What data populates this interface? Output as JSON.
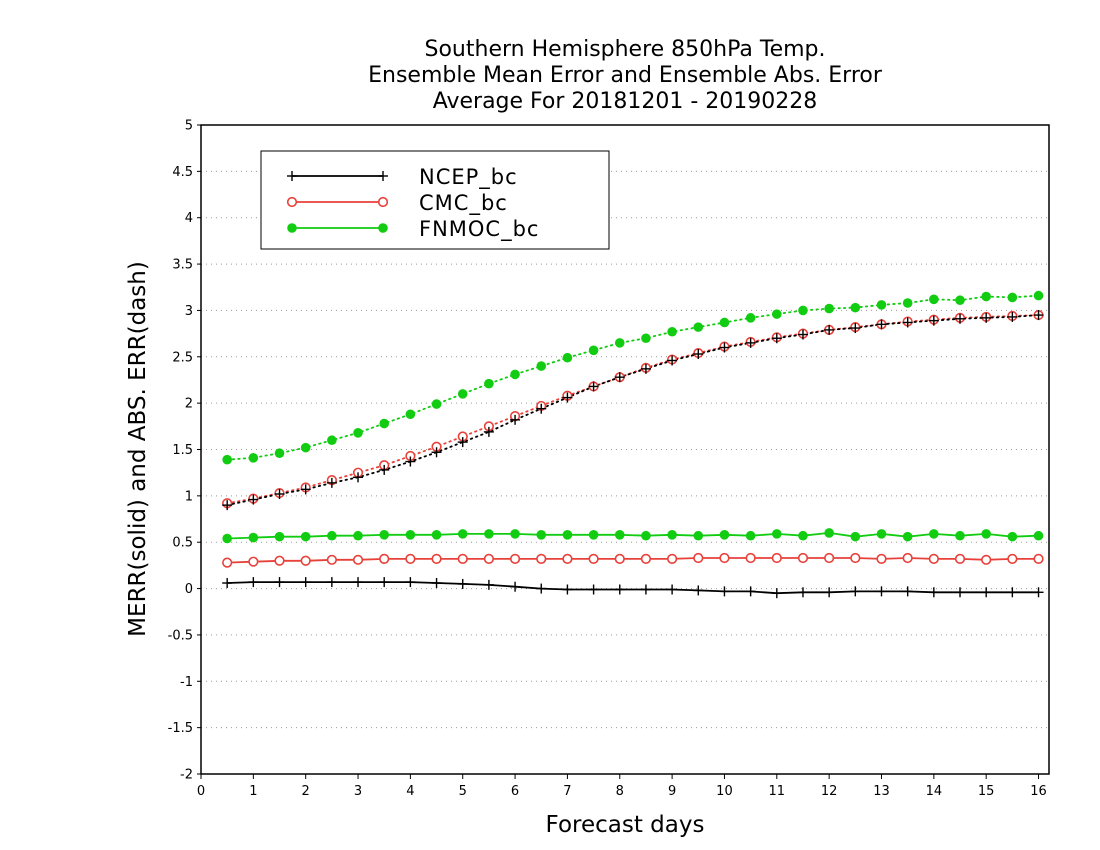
{
  "chart_data": {
    "type": "line",
    "title": [
      "Southern Hemisphere 850hPa Temp.",
      "Ensemble Mean Error and Ensemble Abs. Error",
      "Average For 20181201 - 20190228"
    ],
    "xlabel": "Forecast days",
    "ylabel": "MERR(solid) and ABS. ERR(dash)",
    "xlim": [
      0,
      16.2
    ],
    "ylim": [
      -2,
      5
    ],
    "x_ticks": [
      "0",
      "1",
      "2",
      "3",
      "4",
      "5",
      "6",
      "7",
      "8",
      "9",
      "10",
      "11",
      "12",
      "13",
      "14",
      "15",
      "16"
    ],
    "y_ticks": [
      "-2",
      "-1.5",
      "-1",
      "-0.5",
      "0",
      "0.5",
      "1",
      "1.5",
      "2",
      "2.5",
      "3",
      "3.5",
      "4",
      "4.5",
      "5"
    ],
    "grid": "horizontal dotted",
    "legend_position": "top-left",
    "x": [
      0.5,
      1,
      1.5,
      2,
      2.5,
      3,
      3.5,
      4,
      4.5,
      5,
      5.5,
      6,
      6.5,
      7,
      7.5,
      8,
      8.5,
      9,
      9.5,
      10,
      10.5,
      11,
      11.5,
      12,
      12.5,
      13,
      13.5,
      14,
      14.5,
      15,
      15.5,
      16
    ],
    "series": [
      {
        "name": "NCEP_bc",
        "color": "#000000",
        "marker": "plus",
        "merr": [
          0.06,
          0.07,
          0.07,
          0.07,
          0.07,
          0.07,
          0.07,
          0.07,
          0.06,
          0.05,
          0.04,
          0.02,
          0.0,
          -0.01,
          -0.01,
          -0.01,
          -0.01,
          -0.01,
          -0.02,
          -0.03,
          -0.03,
          -0.05,
          -0.04,
          -0.04,
          -0.03,
          -0.03,
          -0.03,
          -0.04,
          -0.04,
          -0.04,
          -0.04,
          -0.04
        ],
        "abs_err": [
          0.9,
          0.96,
          1.02,
          1.07,
          1.14,
          1.2,
          1.28,
          1.37,
          1.47,
          1.58,
          1.69,
          1.82,
          1.94,
          2.06,
          2.18,
          2.28,
          2.37,
          2.46,
          2.53,
          2.6,
          2.65,
          2.7,
          2.74,
          2.79,
          2.81,
          2.85,
          2.87,
          2.89,
          2.91,
          2.92,
          2.93,
          2.95
        ]
      },
      {
        "name": "CMC_bc",
        "color": "#e8413a",
        "marker": "open-circle",
        "merr": [
          0.28,
          0.29,
          0.3,
          0.3,
          0.31,
          0.31,
          0.32,
          0.32,
          0.32,
          0.32,
          0.32,
          0.32,
          0.32,
          0.32,
          0.32,
          0.32,
          0.32,
          0.32,
          0.33,
          0.33,
          0.33,
          0.33,
          0.33,
          0.33,
          0.33,
          0.32,
          0.33,
          0.32,
          0.32,
          0.31,
          0.32,
          0.32
        ],
        "abs_err": [
          0.92,
          0.97,
          1.03,
          1.09,
          1.17,
          1.25,
          1.33,
          1.43,
          1.53,
          1.64,
          1.75,
          1.86,
          1.97,
          2.08,
          2.18,
          2.28,
          2.38,
          2.47,
          2.54,
          2.61,
          2.66,
          2.71,
          2.75,
          2.79,
          2.82,
          2.85,
          2.88,
          2.9,
          2.92,
          2.93,
          2.94,
          2.95
        ]
      },
      {
        "name": "FNMOC_bc",
        "color": "#11cc11",
        "marker": "filled-circle",
        "merr": [
          0.54,
          0.55,
          0.56,
          0.56,
          0.57,
          0.57,
          0.58,
          0.58,
          0.58,
          0.59,
          0.59,
          0.59,
          0.58,
          0.58,
          0.58,
          0.58,
          0.57,
          0.58,
          0.57,
          0.58,
          0.57,
          0.59,
          0.57,
          0.6,
          0.56,
          0.59,
          0.56,
          0.59,
          0.57,
          0.59,
          0.56,
          0.57
        ],
        "abs_err": [
          1.39,
          1.41,
          1.46,
          1.52,
          1.6,
          1.68,
          1.78,
          1.88,
          1.99,
          2.1,
          2.21,
          2.31,
          2.4,
          2.49,
          2.57,
          2.65,
          2.7,
          2.77,
          2.82,
          2.87,
          2.92,
          2.96,
          3.0,
          3.02,
          3.03,
          3.06,
          3.08,
          3.12,
          3.11,
          3.15,
          3.14,
          3.16
        ]
      }
    ]
  }
}
